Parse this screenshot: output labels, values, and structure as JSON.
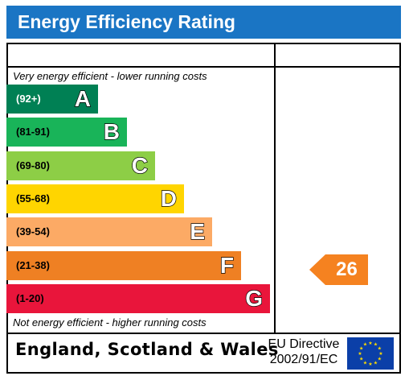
{
  "header": {
    "title": "Energy Efficiency Rating"
  },
  "captions": {
    "top": "Very energy efficient - lower running costs",
    "bottom": "Not energy efficient - higher running costs"
  },
  "footer": {
    "country": "England, Scotland & Wales",
    "directive_line1": "EU Directive",
    "directive_line2": "2002/91/EC"
  },
  "chart_data": {
    "type": "bar",
    "title": "Energy Efficiency Rating",
    "categories": [
      "A",
      "B",
      "C",
      "D",
      "E",
      "F",
      "G"
    ],
    "ranges": [
      "(92+)",
      "(81-91)",
      "(69-80)",
      "(55-68)",
      "(39-54)",
      "(21-38)",
      "(1-20)"
    ],
    "colors": [
      "#008054",
      "#19b459",
      "#8dce46",
      "#ffd500",
      "#fcaa65",
      "#ef8023",
      "#e9153b"
    ],
    "current": {
      "value": 26,
      "label": "26",
      "band": "F",
      "color": "#f58220"
    }
  }
}
